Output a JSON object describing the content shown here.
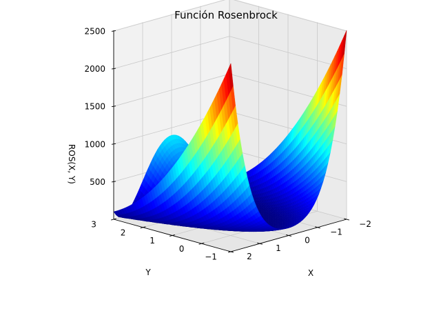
{
  "chart_data": {
    "type": "surface3d",
    "title": "Función Rosenbrock",
    "xlabel": "X",
    "ylabel": "Y",
    "zlabel": "ROS(X, Y)",
    "function": "(1 - x)^2 + 100 * (y - x^2)^2",
    "xlim": [
      -2,
      2
    ],
    "ylim": [
      -1,
      3
    ],
    "zlim": [
      0,
      2509
    ],
    "x_ticks": [
      "−2",
      "−1",
      "0",
      "1",
      "2"
    ],
    "y_ticks": [
      "−1",
      "0",
      "1",
      "2",
      "3"
    ],
    "z_ticks": [
      "500",
      "1000",
      "1500",
      "2000",
      "2500"
    ],
    "colormap": "jet",
    "grid": true,
    "view": {
      "elevation_deg": 20,
      "azimuth_deg": 45
    }
  },
  "colors": {
    "pane_light": "#f2f2f2",
    "pane_mid": "#ebebeb",
    "pane_dark": "#e6e6e6",
    "grid": "#c8c8c8",
    "axis": "#000000"
  }
}
